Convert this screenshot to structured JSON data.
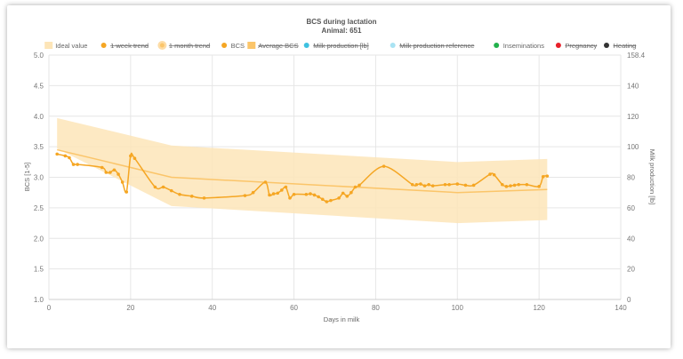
{
  "chart_data": {
    "type": "line",
    "title": "BCS during lactation",
    "subtitle": "Animal: 651",
    "xlabel": "Days in milk",
    "ylabel": "BCS [1-5]",
    "y2label": "Milk production [lb]",
    "xlim": [
      0,
      140
    ],
    "ylim": [
      1.0,
      5.0
    ],
    "y2lim": [
      0,
      158.4
    ],
    "x_ticks": [
      "0",
      "20",
      "40",
      "60",
      "80",
      "100",
      "120",
      "140"
    ],
    "y_ticks": [
      "1.0",
      "1.5",
      "2.0",
      "2.5",
      "3.0",
      "3.5",
      "4.0",
      "4.5",
      "5.0"
    ],
    "y2_ticks": [
      "0",
      "20",
      "40",
      "60",
      "80",
      "100",
      "120",
      "140",
      "158.4"
    ],
    "grid": true,
    "legend_position": "top",
    "legend": [
      {
        "label": "Ideal value",
        "color": "#fde5b8",
        "shape": "rect",
        "hidden": false
      },
      {
        "label": "1 week trend",
        "color": "#f5a623",
        "shape": "dot",
        "hidden": true
      },
      {
        "label": "1 month trend",
        "color": "#fbc56a",
        "shape": "big-dot",
        "hidden": true
      },
      {
        "label": "BCS",
        "color": "#f5a623",
        "shape": "dot",
        "hidden": false
      },
      {
        "label": "Average BCS",
        "color": "#fbc56a",
        "shape": "rect",
        "hidden": true
      },
      {
        "label": "Milk production [lb]",
        "color": "#3ec1e0",
        "shape": "dot",
        "hidden": true
      },
      {
        "label": "Milk production reference",
        "color": "#a9e3f3",
        "shape": "dot",
        "hidden": true
      },
      {
        "label": "Inseminations",
        "color": "#22b14c",
        "shape": "dot",
        "hidden": false
      },
      {
        "label": "Pregnancy",
        "color": "#e8202a",
        "shape": "dot",
        "hidden": true
      },
      {
        "label": "Heating",
        "color": "#333333",
        "shape": "dot",
        "hidden": true
      }
    ],
    "ideal_band": {
      "x": [
        2,
        30,
        100,
        122
      ],
      "upper": [
        3.97,
        3.52,
        3.25,
        3.3
      ],
      "lower": [
        3.47,
        2.53,
        2.25,
        2.3
      ]
    },
    "ideal_value": {
      "x": [
        2,
        30,
        100,
        122
      ],
      "y": [
        3.45,
        3.0,
        2.75,
        2.8
      ]
    },
    "series": [
      {
        "name": "BCS",
        "color": "#f5a623",
        "x": [
          2,
          4,
          5,
          6,
          7,
          13,
          14,
          15,
          16,
          17,
          18,
          19,
          20,
          21,
          26,
          28,
          30,
          32,
          35,
          38,
          48,
          50,
          53,
          54,
          55,
          56,
          57,
          58,
          59,
          60,
          63,
          64,
          65,
          66,
          67,
          68,
          69,
          71,
          72,
          73,
          74,
          75,
          76,
          82,
          89,
          90,
          91,
          92,
          93,
          94,
          97,
          98,
          100,
          102,
          104,
          108,
          109,
          111,
          112,
          113,
          114,
          115,
          117,
          120,
          121,
          122
        ],
        "y": [
          3.38,
          3.35,
          3.32,
          3.21,
          3.21,
          3.16,
          3.08,
          3.08,
          3.12,
          3.05,
          2.92,
          2.76,
          3.35,
          3.31,
          2.84,
          2.84,
          2.78,
          2.72,
          2.69,
          2.66,
          2.7,
          2.75,
          2.92,
          2.71,
          2.73,
          2.74,
          2.79,
          2.84,
          2.66,
          2.72,
          2.72,
          2.73,
          2.71,
          2.68,
          2.64,
          2.6,
          2.62,
          2.66,
          2.74,
          2.69,
          2.75,
          2.84,
          2.87,
          3.18,
          2.88,
          2.88,
          2.89,
          2.86,
          2.88,
          2.86,
          2.88,
          2.88,
          2.89,
          2.87,
          2.87,
          3.05,
          3.04,
          2.88,
          2.85,
          2.86,
          2.87,
          2.88,
          2.88,
          2.85,
          3.01,
          3.02
        ]
      }
    ]
  }
}
